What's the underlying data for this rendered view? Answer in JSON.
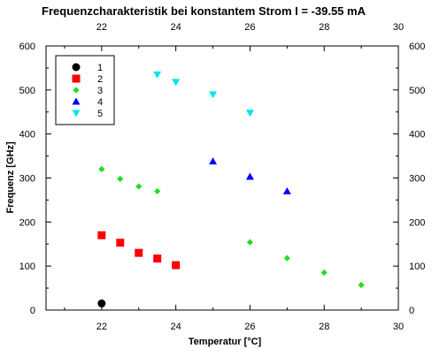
{
  "chart_data": {
    "type": "scatter",
    "title": "Frequenzcharakteristik bei konstantem Strom I = -39.55 mA",
    "xlabel": "Temperatur [°C]",
    "ylabel": "Frequenz [GHz]",
    "xlim": [
      20.5,
      30
    ],
    "ylim": [
      0,
      600
    ],
    "xticks": [
      22,
      24,
      26,
      28,
      30
    ],
    "yticks": [
      0,
      100,
      200,
      300,
      400,
      500,
      600
    ],
    "xtick_labels": [
      "22",
      "24",
      "26",
      "28",
      "30"
    ],
    "ytick_labels": [
      "0",
      "100",
      "200",
      "300",
      "400",
      "500",
      "600"
    ],
    "grid": false,
    "legend_position": "top-left",
    "series": [
      {
        "name": "1",
        "color": "#000000",
        "marker": "circle",
        "points": [
          [
            22.0,
            15
          ]
        ]
      },
      {
        "name": "2",
        "color": "#ff0000",
        "marker": "square",
        "points": [
          [
            22.0,
            170
          ],
          [
            22.5,
            153
          ],
          [
            23.0,
            130
          ],
          [
            23.5,
            117
          ],
          [
            24.0,
            102
          ]
        ]
      },
      {
        "name": "3",
        "color": "#22dd22",
        "marker": "diamond",
        "points": [
          [
            22.0,
            320
          ],
          [
            22.5,
            298
          ],
          [
            23.0,
            281
          ],
          [
            23.5,
            270
          ],
          [
            26.0,
            154
          ],
          [
            27.0,
            118
          ],
          [
            28.0,
            85
          ],
          [
            29.0,
            57
          ]
        ]
      },
      {
        "name": "4",
        "color": "#0000ff",
        "marker": "triangle-up",
        "points": [
          [
            25.0,
            338
          ],
          [
            26.0,
            303
          ],
          [
            27.0,
            270
          ]
        ]
      },
      {
        "name": "5",
        "color": "#00e5ee",
        "marker": "triangle-down",
        "points": [
          [
            23.5,
            535
          ],
          [
            24.0,
            518
          ],
          [
            25.0,
            490
          ],
          [
            26.0,
            448
          ]
        ]
      }
    ]
  }
}
